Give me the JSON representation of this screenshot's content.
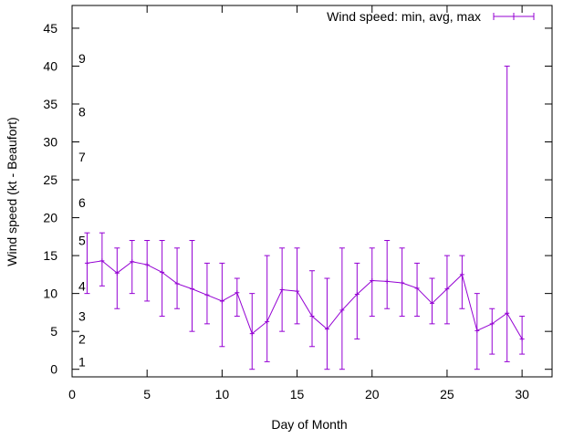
{
  "chart_data": {
    "type": "line",
    "title": "",
    "xlabel": "Day of Month",
    "ylabel": "Wind speed (kt - Beaufort)",
    "xlim": [
      0,
      32
    ],
    "ylim": [
      -1,
      48
    ],
    "x_ticks": [
      0,
      5,
      10,
      15,
      20,
      25,
      30
    ],
    "y_ticks": [
      0,
      5,
      10,
      15,
      20,
      25,
      30,
      35,
      40,
      45
    ],
    "grid": false,
    "legend": "top-right",
    "series": [
      {
        "name": "Wind speed: min, avg, max",
        "color": "#9400d3",
        "style": "errorlines",
        "x": [
          1,
          2,
          3,
          4,
          5,
          6,
          7,
          8,
          9,
          10,
          11,
          12,
          13,
          14,
          15,
          16,
          17,
          18,
          19,
          20,
          21,
          22,
          23,
          24,
          25,
          26,
          27,
          28,
          29,
          30
        ],
        "avg": [
          14,
          14.3,
          12.7,
          14.2,
          13.8,
          12.8,
          11.3,
          10.6,
          9.8,
          9,
          10.1,
          4.7,
          6.3,
          10.5,
          10.3,
          7,
          5.3,
          7.8,
          9.9,
          11.7,
          11.6,
          11.4,
          10.7,
          8.7,
          10.6,
          12.5,
          5.1,
          6,
          7.4,
          4
        ],
        "min": [
          10,
          11,
          8,
          10,
          9,
          7,
          8,
          5,
          6,
          3,
          7,
          0,
          1,
          5,
          6,
          3,
          0,
          0,
          4,
          7,
          8,
          7,
          7,
          6,
          6,
          8,
          0,
          2,
          1,
          2
        ],
        "max": [
          18,
          18,
          16,
          17,
          17,
          17,
          16,
          17,
          14,
          14,
          12,
          10,
          15,
          16,
          16,
          13,
          12,
          16,
          14,
          16,
          17,
          16,
          14,
          12,
          15,
          15,
          10,
          8,
          40,
          7
        ]
      }
    ],
    "beaufort_labels": [
      {
        "label": "1",
        "y": 1
      },
      {
        "label": "2",
        "y": 4
      },
      {
        "label": "3",
        "y": 7
      },
      {
        "label": "4",
        "y": 11
      },
      {
        "label": "5",
        "y": 17
      },
      {
        "label": "6",
        "y": 22
      },
      {
        "label": "7",
        "y": 28
      },
      {
        "label": "8",
        "y": 34
      },
      {
        "label": "9",
        "y": 41
      }
    ]
  }
}
